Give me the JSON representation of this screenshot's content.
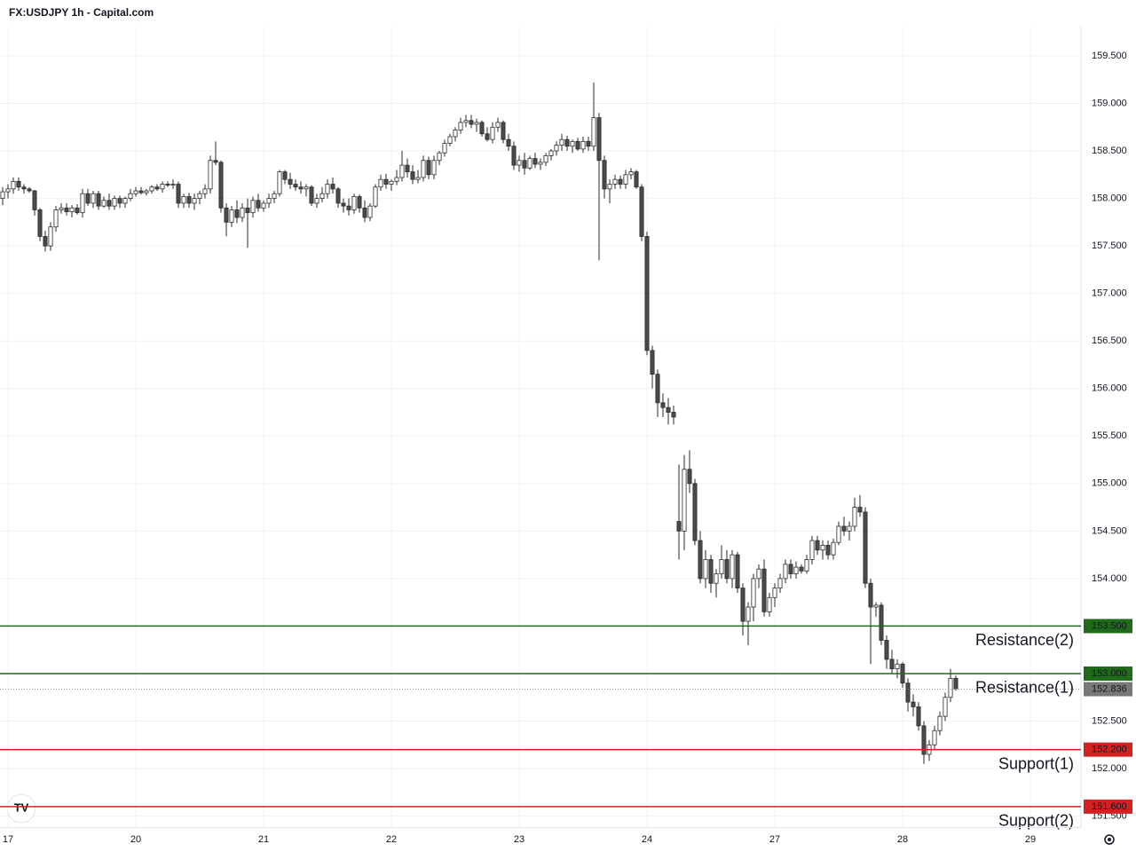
{
  "chart_data": {
    "type": "candlestick",
    "title": "FX:USDJPY 1h - Capital.com",
    "ylim": [
      151.384,
      159.808
    ],
    "yticks": [
      {
        "value": 151.5,
        "label": "151.500"
      },
      {
        "value": 152,
        "label": "152.000"
      },
      {
        "value": 152.5,
        "label": "152.500"
      },
      {
        "value": 153,
        "label": "153.000"
      },
      {
        "value": 153.5,
        "label": "153.500"
      },
      {
        "value": 154,
        "label": "154.000"
      },
      {
        "value": 154.5,
        "label": "154.500"
      },
      {
        "value": 155,
        "label": "155.000"
      },
      {
        "value": 155.5,
        "label": "155.500"
      },
      {
        "value": 156,
        "label": "156.000"
      },
      {
        "value": 156.5,
        "label": "156.500"
      },
      {
        "value": 157,
        "label": "157.000"
      },
      {
        "value": 157.5,
        "label": "157.500"
      },
      {
        "value": 158,
        "label": "158.000"
      },
      {
        "value": 158.5,
        "label": "158.500"
      },
      {
        "value": 159,
        "label": "159.000"
      },
      {
        "value": 159.5,
        "label": "159.500"
      }
    ],
    "xlim": [
      -0.5,
      202.5
    ],
    "xticks": [
      {
        "value": 1,
        "label": "17"
      },
      {
        "value": 25,
        "label": "20"
      },
      {
        "value": 49,
        "label": "21"
      },
      {
        "value": 73,
        "label": "22"
      },
      {
        "value": 97,
        "label": "23"
      },
      {
        "value": 121,
        "label": "24"
      },
      {
        "value": 145,
        "label": "27"
      },
      {
        "value": 169,
        "label": "28"
      },
      {
        "value": 193,
        "label": "29"
      }
    ],
    "grid": true,
    "up_color": "#ffffff",
    "down_color": "#4a4a4a",
    "wick_color": "#2a2a2a",
    "levels": [
      {
        "name": "Resistance(2)",
        "value": 153.5,
        "label": "153.500",
        "color": "#1f6b1a"
      },
      {
        "name": "Resistance(1)",
        "value": 153.0,
        "label": "153.000",
        "color": "#1f6b1a"
      },
      {
        "name": "Support(1)",
        "value": 152.2,
        "label": "152.200",
        "color": "#d42020"
      },
      {
        "name": "Support(2)",
        "value": 151.6,
        "label": "151.600",
        "color": "#d42020"
      }
    ],
    "last_price": {
      "value": 152.836,
      "label": "152.836",
      "color": "#787878"
    },
    "candles": [
      [
        158.0,
        158.12,
        157.93,
        158.07
      ],
      [
        158.07,
        158.15,
        158.0,
        158.1
      ],
      [
        158.1,
        158.22,
        158.05,
        158.18
      ],
      [
        158.18,
        158.22,
        158.08,
        158.12
      ],
      [
        158.12,
        158.15,
        158.05,
        158.1
      ],
      [
        158.1,
        158.12,
        158.06,
        158.08
      ],
      [
        158.08,
        158.09,
        157.82,
        157.88
      ],
      [
        157.88,
        157.9,
        157.55,
        157.6
      ],
      [
        157.6,
        157.66,
        157.44,
        157.5
      ],
      [
        157.5,
        157.75,
        157.45,
        157.7
      ],
      [
        157.7,
        157.92,
        157.65,
        157.88
      ],
      [
        157.88,
        157.95,
        157.84,
        157.9
      ],
      [
        157.9,
        157.95,
        157.82,
        157.86
      ],
      [
        157.86,
        157.93,
        157.8,
        157.9
      ],
      [
        157.9,
        157.94,
        157.83,
        157.85
      ],
      [
        157.85,
        158.1,
        157.8,
        158.05
      ],
      [
        158.05,
        158.1,
        157.92,
        157.95
      ],
      [
        157.95,
        158.08,
        157.9,
        158.05
      ],
      [
        158.05,
        158.08,
        157.88,
        157.92
      ],
      [
        157.92,
        158.02,
        157.9,
        157.98
      ],
      [
        157.98,
        158.05,
        157.88,
        157.92
      ],
      [
        157.92,
        158.03,
        157.88,
        158.0
      ],
      [
        158.0,
        158.03,
        157.9,
        157.95
      ],
      [
        157.95,
        158.02,
        157.9,
        158.0
      ],
      [
        158.0,
        158.1,
        157.97,
        158.05
      ],
      [
        158.05,
        158.12,
        158.02,
        158.08
      ],
      [
        158.08,
        158.12,
        158.04,
        158.06
      ],
      [
        158.06,
        158.1,
        158.03,
        158.08
      ],
      [
        158.08,
        158.14,
        158.05,
        158.12
      ],
      [
        158.12,
        158.15,
        158.08,
        158.1
      ],
      [
        158.1,
        158.18,
        158.06,
        158.15
      ],
      [
        158.15,
        158.18,
        158.12,
        158.14
      ],
      [
        158.14,
        158.2,
        158.1,
        158.15
      ],
      [
        158.15,
        158.18,
        157.9,
        157.95
      ],
      [
        157.95,
        158.05,
        157.9,
        158.02
      ],
      [
        158.02,
        158.06,
        157.9,
        157.95
      ],
      [
        157.95,
        158.05,
        157.88,
        158.0
      ],
      [
        158.0,
        158.08,
        157.94,
        158.05
      ],
      [
        158.05,
        158.15,
        158.0,
        158.1
      ],
      [
        158.1,
        158.45,
        158.05,
        158.4
      ],
      [
        158.4,
        158.6,
        158.35,
        158.38
      ],
      [
        158.38,
        158.4,
        157.85,
        157.9
      ],
      [
        157.9,
        157.95,
        157.6,
        157.75
      ],
      [
        157.75,
        157.92,
        157.7,
        157.88
      ],
      [
        157.88,
        157.98,
        157.74,
        157.8
      ],
      [
        157.8,
        157.95,
        157.75,
        157.9
      ],
      [
        157.9,
        158.0,
        157.48,
        157.85
      ],
      [
        157.85,
        158.02,
        157.8,
        157.98
      ],
      [
        157.98,
        158.05,
        157.86,
        157.9
      ],
      [
        157.9,
        157.98,
        157.86,
        157.95
      ],
      [
        157.95,
        158.05,
        157.9,
        158.0
      ],
      [
        158.0,
        158.08,
        157.95,
        158.05
      ],
      [
        158.05,
        158.3,
        158.02,
        158.28
      ],
      [
        158.28,
        158.3,
        158.15,
        158.2
      ],
      [
        158.2,
        158.27,
        158.1,
        158.15
      ],
      [
        158.15,
        158.2,
        158.08,
        158.12
      ],
      [
        158.12,
        158.18,
        158.05,
        158.1
      ],
      [
        158.1,
        158.15,
        158.02,
        158.12
      ],
      [
        158.12,
        158.14,
        157.92,
        157.95
      ],
      [
        157.95,
        158.05,
        157.9,
        158.0
      ],
      [
        158.0,
        158.12,
        157.96,
        158.05
      ],
      [
        158.05,
        158.2,
        158.0,
        158.15
      ],
      [
        158.15,
        158.22,
        158.05,
        158.1
      ],
      [
        158.1,
        158.12,
        157.9,
        157.95
      ],
      [
        157.95,
        158.0,
        157.85,
        157.92
      ],
      [
        157.92,
        158.0,
        157.82,
        157.88
      ],
      [
        157.88,
        158.05,
        157.84,
        158.02
      ],
      [
        158.02,
        158.04,
        157.85,
        157.9
      ],
      [
        157.9,
        157.98,
        157.75,
        157.8
      ],
      [
        157.8,
        157.95,
        157.76,
        157.92
      ],
      [
        157.92,
        158.15,
        157.9,
        158.12
      ],
      [
        158.12,
        158.25,
        158.08,
        158.2
      ],
      [
        158.2,
        158.26,
        158.1,
        158.15
      ],
      [
        158.15,
        158.2,
        158.08,
        158.18
      ],
      [
        158.18,
        158.3,
        158.14,
        158.22
      ],
      [
        158.22,
        158.5,
        158.18,
        158.35
      ],
      [
        158.35,
        158.42,
        158.22,
        158.28
      ],
      [
        158.28,
        158.35,
        158.15,
        158.2
      ],
      [
        158.2,
        158.3,
        158.16,
        158.22
      ],
      [
        158.22,
        158.45,
        158.18,
        158.4
      ],
      [
        158.4,
        158.44,
        158.2,
        158.25
      ],
      [
        158.25,
        158.45,
        158.2,
        158.4
      ],
      [
        158.4,
        158.5,
        158.35,
        158.48
      ],
      [
        158.48,
        158.62,
        158.44,
        158.58
      ],
      [
        158.58,
        158.68,
        158.55,
        158.65
      ],
      [
        158.65,
        158.75,
        158.6,
        158.72
      ],
      [
        158.72,
        158.85,
        158.68,
        158.8
      ],
      [
        158.8,
        158.88,
        158.75,
        158.82
      ],
      [
        158.82,
        158.88,
        158.74,
        158.78
      ],
      [
        158.78,
        158.84,
        158.7,
        158.8
      ],
      [
        158.8,
        158.82,
        158.65,
        158.68
      ],
      [
        158.68,
        158.75,
        158.6,
        158.62
      ],
      [
        158.62,
        158.8,
        158.58,
        158.75
      ],
      [
        158.75,
        158.85,
        158.7,
        158.8
      ],
      [
        158.8,
        158.82,
        158.58,
        158.62
      ],
      [
        158.62,
        158.68,
        158.5,
        158.55
      ],
      [
        158.55,
        158.6,
        158.3,
        158.35
      ],
      [
        158.35,
        158.45,
        158.28,
        158.4
      ],
      [
        158.4,
        158.48,
        158.25,
        158.32
      ],
      [
        158.32,
        158.45,
        158.3,
        158.42
      ],
      [
        158.42,
        158.48,
        158.32,
        158.36
      ],
      [
        158.36,
        158.42,
        158.3,
        158.38
      ],
      [
        158.38,
        158.48,
        158.34,
        158.45
      ],
      [
        158.45,
        158.52,
        158.4,
        158.5
      ],
      [
        158.5,
        158.6,
        158.45,
        158.56
      ],
      [
        158.56,
        158.68,
        158.5,
        158.62
      ],
      [
        158.62,
        158.66,
        158.5,
        158.55
      ],
      [
        158.55,
        158.62,
        158.48,
        158.6
      ],
      [
        158.6,
        158.64,
        158.5,
        158.52
      ],
      [
        158.52,
        158.65,
        158.48,
        158.6
      ],
      [
        158.6,
        158.65,
        158.5,
        158.55
      ],
      [
        158.55,
        159.22,
        158.5,
        158.85
      ],
      [
        158.85,
        158.9,
        157.35,
        158.4
      ],
      [
        158.4,
        158.45,
        158.0,
        158.1
      ],
      [
        158.1,
        158.2,
        157.95,
        158.15
      ],
      [
        158.15,
        158.25,
        158.1,
        158.2
      ],
      [
        158.2,
        158.24,
        158.1,
        158.15
      ],
      [
        158.15,
        158.3,
        158.1,
        158.25
      ],
      [
        158.25,
        158.32,
        158.2,
        158.28
      ],
      [
        158.28,
        158.3,
        158.1,
        158.12
      ],
      [
        158.12,
        158.15,
        157.55,
        157.6
      ],
      [
        157.6,
        157.65,
        156.35,
        156.4
      ],
      [
        156.4,
        156.45,
        156.0,
        156.15
      ],
      [
        156.15,
        156.2,
        155.7,
        155.85
      ],
      [
        155.85,
        155.95,
        155.7,
        155.8
      ],
      [
        155.8,
        155.9,
        155.62,
        155.75
      ],
      [
        155.75,
        155.82,
        155.62,
        155.7
      ],
      [
        154.6,
        155.2,
        154.2,
        154.5
      ],
      [
        154.5,
        155.3,
        154.3,
        155.15
      ],
      [
        155.15,
        155.35,
        154.9,
        155.0
      ],
      [
        155.0,
        155.05,
        154.35,
        154.4
      ],
      [
        154.4,
        154.5,
        153.95,
        154.0
      ],
      [
        154.0,
        154.3,
        153.9,
        154.2
      ],
      [
        154.2,
        154.25,
        153.85,
        153.95
      ],
      [
        153.95,
        154.1,
        153.8,
        154.05
      ],
      [
        154.05,
        154.35,
        154.0,
        154.2
      ],
      [
        154.2,
        154.3,
        153.95,
        154.0
      ],
      [
        154.0,
        154.3,
        153.9,
        154.25
      ],
      [
        154.25,
        154.28,
        153.85,
        153.9
      ],
      [
        153.9,
        153.95,
        153.4,
        153.55
      ],
      [
        153.55,
        153.75,
        153.3,
        153.7
      ],
      [
        153.7,
        154.05,
        153.55,
        154.0
      ],
      [
        154.0,
        154.15,
        153.9,
        154.1
      ],
      [
        154.1,
        154.2,
        153.6,
        153.65
      ],
      [
        153.65,
        153.85,
        153.6,
        153.8
      ],
      [
        153.8,
        153.95,
        153.7,
        153.9
      ],
      [
        153.9,
        154.05,
        153.85,
        154.0
      ],
      [
        154.0,
        154.2,
        153.95,
        154.15
      ],
      [
        154.15,
        154.2,
        154.0,
        154.05
      ],
      [
        154.05,
        154.18,
        154.0,
        154.12
      ],
      [
        154.12,
        154.15,
        154.05,
        154.08
      ],
      [
        154.08,
        154.25,
        154.05,
        154.2
      ],
      [
        154.2,
        154.45,
        154.15,
        154.4
      ],
      [
        154.4,
        154.45,
        154.25,
        154.3
      ],
      [
        154.3,
        154.4,
        154.2,
        154.35
      ],
      [
        154.35,
        154.4,
        154.2,
        154.25
      ],
      [
        154.25,
        154.42,
        154.2,
        154.38
      ],
      [
        154.38,
        154.6,
        154.35,
        154.55
      ],
      [
        154.55,
        154.65,
        154.45,
        154.5
      ],
      [
        154.5,
        154.6,
        154.4,
        154.55
      ],
      [
        154.55,
        154.85,
        154.5,
        154.75
      ],
      [
        154.75,
        154.88,
        154.65,
        154.7
      ],
      [
        154.7,
        154.75,
        153.9,
        153.95
      ],
      [
        153.95,
        154.0,
        153.1,
        153.7
      ],
      [
        153.7,
        153.75,
        153.6,
        153.72
      ],
      [
        153.72,
        153.75,
        153.3,
        153.35
      ],
      [
        153.35,
        153.4,
        153.05,
        153.15
      ],
      [
        153.15,
        153.25,
        153.0,
        153.05
      ],
      [
        153.05,
        153.15,
        152.95,
        153.1
      ],
      [
        153.1,
        153.12,
        152.85,
        152.9
      ],
      [
        152.9,
        152.95,
        152.6,
        152.7
      ],
      [
        152.7,
        152.78,
        152.55,
        152.65
      ],
      [
        152.65,
        152.7,
        152.4,
        152.45
      ],
      [
        152.45,
        152.5,
        152.05,
        152.15
      ],
      [
        152.15,
        152.3,
        152.08,
        152.25
      ],
      [
        152.25,
        152.45,
        152.2,
        152.4
      ],
      [
        152.4,
        152.6,
        152.35,
        152.55
      ],
      [
        152.55,
        152.8,
        152.5,
        152.75
      ],
      [
        152.75,
        153.05,
        152.7,
        152.95
      ],
      [
        152.95,
        152.98,
        152.82,
        152.84
      ]
    ]
  }
}
